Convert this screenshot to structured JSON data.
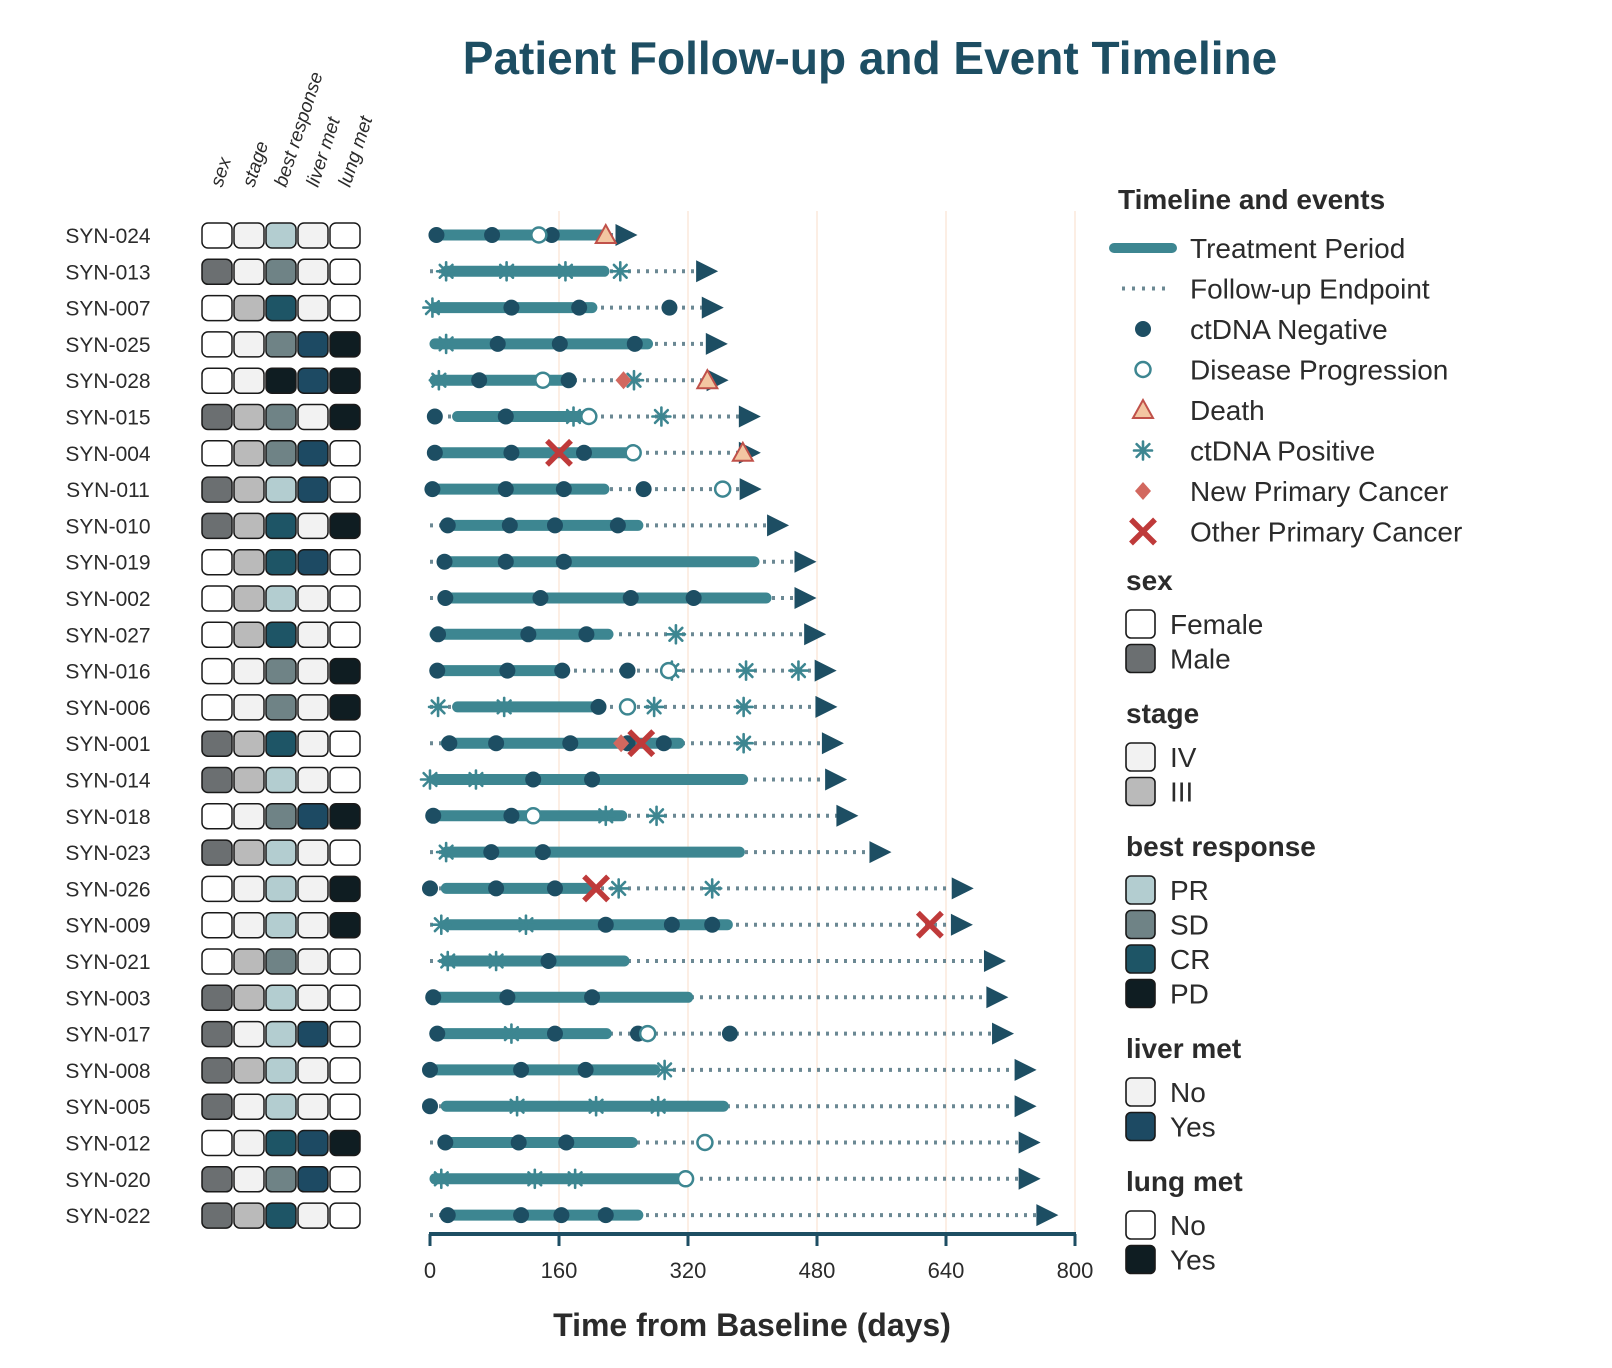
{
  "chart_data": {
    "type": "swimmer",
    "title": "Patient Follow-up and Event Timeline",
    "xlabel": "Time from Baseline (days)",
    "xlim": [
      0,
      800
    ],
    "xticks": [
      0,
      160,
      320,
      480,
      640,
      800
    ],
    "grid": "vertical",
    "colors": {
      "title": "#1d4e63",
      "treatment": "#3d8691",
      "followup": "#6b8893",
      "ctdna_negative": "#1d4e63",
      "progression": "#3d8691",
      "death_fill": "#f3c6a2",
      "death_stroke": "#c0514a",
      "ctdna_positive": "#3d8691",
      "new_primary": "#d2685f",
      "other_primary": "#bf3a3a",
      "arrow": "#1d4e63",
      "grid": "#fbe9dc",
      "axis": "#1d4e63"
    },
    "annotation_columns": [
      "sex",
      "stage",
      "best response",
      "liver met",
      "lung met"
    ],
    "legend": {
      "position": "right",
      "timeline": {
        "title": "Timeline and events",
        "items": [
          "Treatment Period",
          "Follow-up Endpoint",
          "ctDNA Negative",
          "Disease Progression",
          "Death",
          "ctDNA Positive",
          "New Primary Cancer",
          "Other Primary Cancer"
        ]
      },
      "annotations": [
        {
          "title": "sex",
          "items": [
            {
              "label": "Female",
              "color": "#ffffff"
            },
            {
              "label": "Male",
              "color": "#6b6f71"
            }
          ]
        },
        {
          "title": "stage",
          "items": [
            {
              "label": "IV",
              "color": "#f2f2f2"
            },
            {
              "label": "III",
              "color": "#bababa"
            }
          ]
        },
        {
          "title": "best response",
          "items": [
            {
              "label": "PR",
              "color": "#b3cdd0"
            },
            {
              "label": "SD",
              "color": "#6f8386"
            },
            {
              "label": "CR",
              "color": "#1e5566"
            },
            {
              "label": "PD",
              "color": "#0f1d22"
            }
          ]
        },
        {
          "title": "liver met",
          "items": [
            {
              "label": "No",
              "color": "#f2f2f2"
            },
            {
              "label": "Yes",
              "color": "#1d4a63"
            }
          ]
        },
        {
          "title": "lung met",
          "items": [
            {
              "label": "No",
              "color": "#ffffff"
            },
            {
              "label": "Yes",
              "color": "#0f1d22"
            }
          ]
        }
      ]
    },
    "patients": [
      {
        "id": "SYN-024",
        "sex": "Female",
        "stage": "IV",
        "best_response": "PR",
        "liver_met": "No",
        "lung_met": "No",
        "treatment": [
          0,
          220
        ],
        "followup_end": 240,
        "ctdna_negative": [
          8,
          77,
          151
        ],
        "ctdna_positive": [],
        "progression": [
          135
        ],
        "death": [
          218
        ],
        "new_primary": [],
        "other_primary": []
      },
      {
        "id": "SYN-013",
        "sex": "Male",
        "stage": "IV",
        "best_response": "SD",
        "liver_met": "No",
        "lung_met": "No",
        "treatment": [
          14,
          222
        ],
        "followup_end": 340,
        "ctdna_negative": [],
        "ctdna_positive": [
          20,
          95,
          168,
          236
        ],
        "progression": [],
        "death": [],
        "new_primary": [],
        "other_primary": []
      },
      {
        "id": "SYN-007",
        "sex": "Female",
        "stage": "III",
        "best_response": "CR",
        "liver_met": "No",
        "lung_met": "No",
        "treatment": [
          0,
          207
        ],
        "followup_end": 347,
        "ctdna_negative": [
          101,
          185,
          297
        ],
        "ctdna_positive": [
          3
        ],
        "progression": [],
        "death": [],
        "new_primary": [],
        "other_primary": []
      },
      {
        "id": "SYN-025",
        "sex": "Female",
        "stage": "IV",
        "best_response": "SD",
        "liver_met": "Yes",
        "lung_met": "Yes",
        "treatment": [
          0,
          276
        ],
        "followup_end": 352,
        "ctdna_negative": [
          84,
          161,
          254
        ],
        "ctdna_positive": [
          20
        ],
        "progression": [],
        "death": [],
        "new_primary": [],
        "other_primary": []
      },
      {
        "id": "SYN-028",
        "sex": "Female",
        "stage": "IV",
        "best_response": "PD",
        "liver_met": "Yes",
        "lung_met": "Yes",
        "treatment": [
          0,
          177
        ],
        "followup_end": 353,
        "ctdna_negative": [
          61,
          172
        ],
        "ctdna_positive": [
          11,
          253
        ],
        "progression": [
          140
        ],
        "death": [
          344
        ],
        "new_primary": [
          240
        ],
        "other_primary": []
      },
      {
        "id": "SYN-015",
        "sex": "Male",
        "stage": "III",
        "best_response": "SD",
        "liver_met": "No",
        "lung_met": "Yes",
        "treatment": [
          28,
          196
        ],
        "followup_end": 393,
        "ctdna_negative": [
          6,
          94
        ],
        "ctdna_positive": [
          178,
          287
        ],
        "progression": [
          197
        ],
        "death": [],
        "new_primary": [],
        "other_primary": []
      },
      {
        "id": "SYN-004",
        "sex": "Female",
        "stage": "III",
        "best_response": "SD",
        "liver_met": "Yes",
        "lung_met": "No",
        "treatment": [
          0,
          252
        ],
        "followup_end": 393,
        "ctdna_negative": [
          6,
          101,
          191
        ],
        "ctdna_positive": [],
        "progression": [
          252
        ],
        "death": [
          388
        ],
        "new_primary": [],
        "other_primary": [
          160
        ]
      },
      {
        "id": "SYN-011",
        "sex": "Male",
        "stage": "III",
        "best_response": "PR",
        "liver_met": "Yes",
        "lung_met": "No",
        "treatment": [
          0,
          222
        ],
        "followup_end": 394,
        "ctdna_negative": [
          3,
          94,
          166,
          265
        ],
        "ctdna_positive": [],
        "progression": [
          363
        ],
        "death": [],
        "new_primary": [],
        "other_primary": []
      },
      {
        "id": "SYN-010",
        "sex": "Male",
        "stage": "III",
        "best_response": "CR",
        "liver_met": "No",
        "lung_met": "Yes",
        "treatment": [
          14,
          264
        ],
        "followup_end": 428,
        "ctdna_negative": [
          22,
          99,
          155,
          233
        ],
        "ctdna_positive": [],
        "progression": [],
        "death": [],
        "new_primary": [],
        "other_primary": []
      },
      {
        "id": "SYN-019",
        "sex": "Female",
        "stage": "III",
        "best_response": "CR",
        "liver_met": "Yes",
        "lung_met": "No",
        "treatment": [
          14,
          408
        ],
        "followup_end": 462,
        "ctdna_negative": [
          18,
          94,
          166
        ],
        "ctdna_positive": [],
        "progression": [],
        "death": [],
        "new_primary": [],
        "other_primary": []
      },
      {
        "id": "SYN-002",
        "sex": "Female",
        "stage": "III",
        "best_response": "PR",
        "liver_met": "No",
        "lung_met": "No",
        "treatment": [
          14,
          423
        ],
        "followup_end": 462,
        "ctdna_negative": [
          19,
          137,
          249,
          327
        ],
        "ctdna_positive": [],
        "progression": [],
        "death": [],
        "new_primary": [],
        "other_primary": []
      },
      {
        "id": "SYN-027",
        "sex": "Female",
        "stage": "III",
        "best_response": "CR",
        "liver_met": "No",
        "lung_met": "No",
        "treatment": [
          0,
          227
        ],
        "followup_end": 474,
        "ctdna_negative": [
          10,
          122,
          194
        ],
        "ctdna_positive": [
          305
        ],
        "progression": [],
        "death": [],
        "new_primary": [],
        "other_primary": []
      },
      {
        "id": "SYN-016",
        "sex": "Female",
        "stage": "IV",
        "best_response": "SD",
        "liver_met": "No",
        "lung_met": "Yes",
        "treatment": [
          0,
          173
        ],
        "followup_end": 487,
        "ctdna_negative": [
          9,
          96,
          164,
          245
        ],
        "ctdna_positive": [
          300,
          392,
          457
        ],
        "progression": [
          296
        ],
        "death": [],
        "new_primary": [],
        "other_primary": []
      },
      {
        "id": "SYN-006",
        "sex": "Female",
        "stage": "IV",
        "best_response": "SD",
        "liver_met": "No",
        "lung_met": "Yes",
        "treatment": [
          28,
          209
        ],
        "followup_end": 488,
        "ctdna_negative": [
          209
        ],
        "ctdna_positive": [
          10,
          92,
          278,
          389
        ],
        "progression": [
          245
        ],
        "death": [],
        "new_primary": [],
        "other_primary": []
      },
      {
        "id": "SYN-001",
        "sex": "Male",
        "stage": "III",
        "best_response": "CR",
        "liver_met": "No",
        "lung_met": "No",
        "treatment": [
          14,
          315
        ],
        "followup_end": 496,
        "ctdna_negative": [
          24,
          82,
          174,
          245,
          290
        ],
        "ctdna_positive": [
          389
        ],
        "progression": [],
        "death": [],
        "new_primary": [
          237
        ],
        "other_primary": [
          262
        ]
      },
      {
        "id": "SYN-014",
        "sex": "Male",
        "stage": "III",
        "best_response": "PR",
        "liver_met": "No",
        "lung_met": "No",
        "treatment": [
          0,
          394
        ],
        "followup_end": 500,
        "ctdna_negative": [
          128,
          201
        ],
        "ctdna_positive": [
          0,
          57
        ],
        "progression": [],
        "death": [],
        "new_primary": [],
        "other_primary": []
      },
      {
        "id": "SYN-018",
        "sex": "Female",
        "stage": "IV",
        "best_response": "SD",
        "liver_met": "Yes",
        "lung_met": "Yes",
        "treatment": [
          0,
          244
        ],
        "followup_end": 514,
        "ctdna_negative": [
          4,
          101
        ],
        "ctdna_positive": [
          218,
          281
        ],
        "progression": [
          128
        ],
        "death": [],
        "new_primary": [],
        "other_primary": []
      },
      {
        "id": "SYN-023",
        "sex": "Male",
        "stage": "III",
        "best_response": "PR",
        "liver_met": "No",
        "lung_met": "No",
        "treatment": [
          14,
          390
        ],
        "followup_end": 555,
        "ctdna_negative": [
          76,
          140
        ],
        "ctdna_positive": [
          20
        ],
        "progression": [],
        "death": [],
        "new_primary": [],
        "other_primary": []
      },
      {
        "id": "SYN-026",
        "sex": "Female",
        "stage": "IV",
        "best_response": "PR",
        "liver_met": "No",
        "lung_met": "Yes",
        "treatment": [
          14,
          206
        ],
        "followup_end": 657,
        "ctdna_negative": [
          0,
          82,
          155
        ],
        "ctdna_positive": [
          234,
          350
        ],
        "progression": [],
        "death": [],
        "new_primary": [],
        "other_primary": [
          206
        ]
      },
      {
        "id": "SYN-009",
        "sex": "Female",
        "stage": "IV",
        "best_response": "PR",
        "liver_met": "No",
        "lung_met": "Yes",
        "treatment": [
          14,
          375
        ],
        "followup_end": 656,
        "ctdna_negative": [
          218,
          300,
          350
        ],
        "ctdna_positive": [
          14,
          119
        ],
        "progression": [],
        "death": [],
        "new_primary": [],
        "other_primary": [
          620
        ]
      },
      {
        "id": "SYN-021",
        "sex": "Female",
        "stage": "III",
        "best_response": "SD",
        "liver_met": "No",
        "lung_met": "No",
        "treatment": [
          14,
          247
        ],
        "followup_end": 697,
        "ctdna_negative": [
          147
        ],
        "ctdna_positive": [
          22,
          82
        ],
        "progression": [],
        "death": [],
        "new_primary": [],
        "other_primary": []
      },
      {
        "id": "SYN-003",
        "sex": "Male",
        "stage": "III",
        "best_response": "PR",
        "liver_met": "No",
        "lung_met": "No",
        "treatment": [
          0,
          326
        ],
        "followup_end": 700,
        "ctdna_negative": [
          4,
          96,
          201
        ],
        "ctdna_positive": [],
        "progression": [],
        "death": [],
        "new_primary": [],
        "other_primary": []
      },
      {
        "id": "SYN-017",
        "sex": "Male",
        "stage": "IV",
        "best_response": "PR",
        "liver_met": "Yes",
        "lung_met": "No",
        "treatment": [
          0,
          225
        ],
        "followup_end": 707,
        "ctdna_negative": [
          9,
          155,
          258,
          372
        ],
        "ctdna_positive": [
          101
        ],
        "progression": [
          270
        ],
        "death": [],
        "new_primary": [],
        "other_primary": []
      },
      {
        "id": "SYN-008",
        "sex": "Male",
        "stage": "III",
        "best_response": "PR",
        "liver_met": "No",
        "lung_met": "No",
        "treatment": [
          0,
          285
        ],
        "followup_end": 735,
        "ctdna_negative": [
          0,
          113,
          193
        ],
        "ctdna_positive": [
          291
        ],
        "progression": [],
        "death": [],
        "new_primary": [],
        "other_primary": []
      },
      {
        "id": "SYN-005",
        "sex": "Male",
        "stage": "IV",
        "best_response": "PR",
        "liver_met": "No",
        "lung_met": "No",
        "treatment": [
          14,
          370
        ],
        "followup_end": 735,
        "ctdna_negative": [
          0
        ],
        "ctdna_positive": [
          108,
          206,
          283
        ],
        "progression": [],
        "death": [],
        "new_primary": [],
        "other_primary": []
      },
      {
        "id": "SYN-012",
        "sex": "Female",
        "stage": "IV",
        "best_response": "CR",
        "liver_met": "Yes",
        "lung_met": "Yes",
        "treatment": [
          14,
          257
        ],
        "followup_end": 740,
        "ctdna_negative": [
          19,
          110,
          169
        ],
        "ctdna_positive": [],
        "progression": [
          341
        ],
        "death": [],
        "new_primary": [],
        "other_primary": []
      },
      {
        "id": "SYN-020",
        "sex": "Male",
        "stage": "IV",
        "best_response": "SD",
        "liver_met": "Yes",
        "lung_met": "No",
        "treatment": [
          0,
          317
        ],
        "followup_end": 740,
        "ctdna_negative": [],
        "ctdna_positive": [
          14,
          130,
          180
        ],
        "progression": [
          317
        ],
        "death": [],
        "new_primary": [],
        "other_primary": []
      },
      {
        "id": "SYN-022",
        "sex": "Male",
        "stage": "III",
        "best_response": "CR",
        "liver_met": "No",
        "lung_met": "No",
        "treatment": [
          14,
          264
        ],
        "followup_end": 762,
        "ctdna_negative": [
          22,
          113,
          163,
          218
        ],
        "ctdna_positive": [],
        "progression": [],
        "death": [],
        "new_primary": [],
        "other_primary": []
      }
    ]
  }
}
